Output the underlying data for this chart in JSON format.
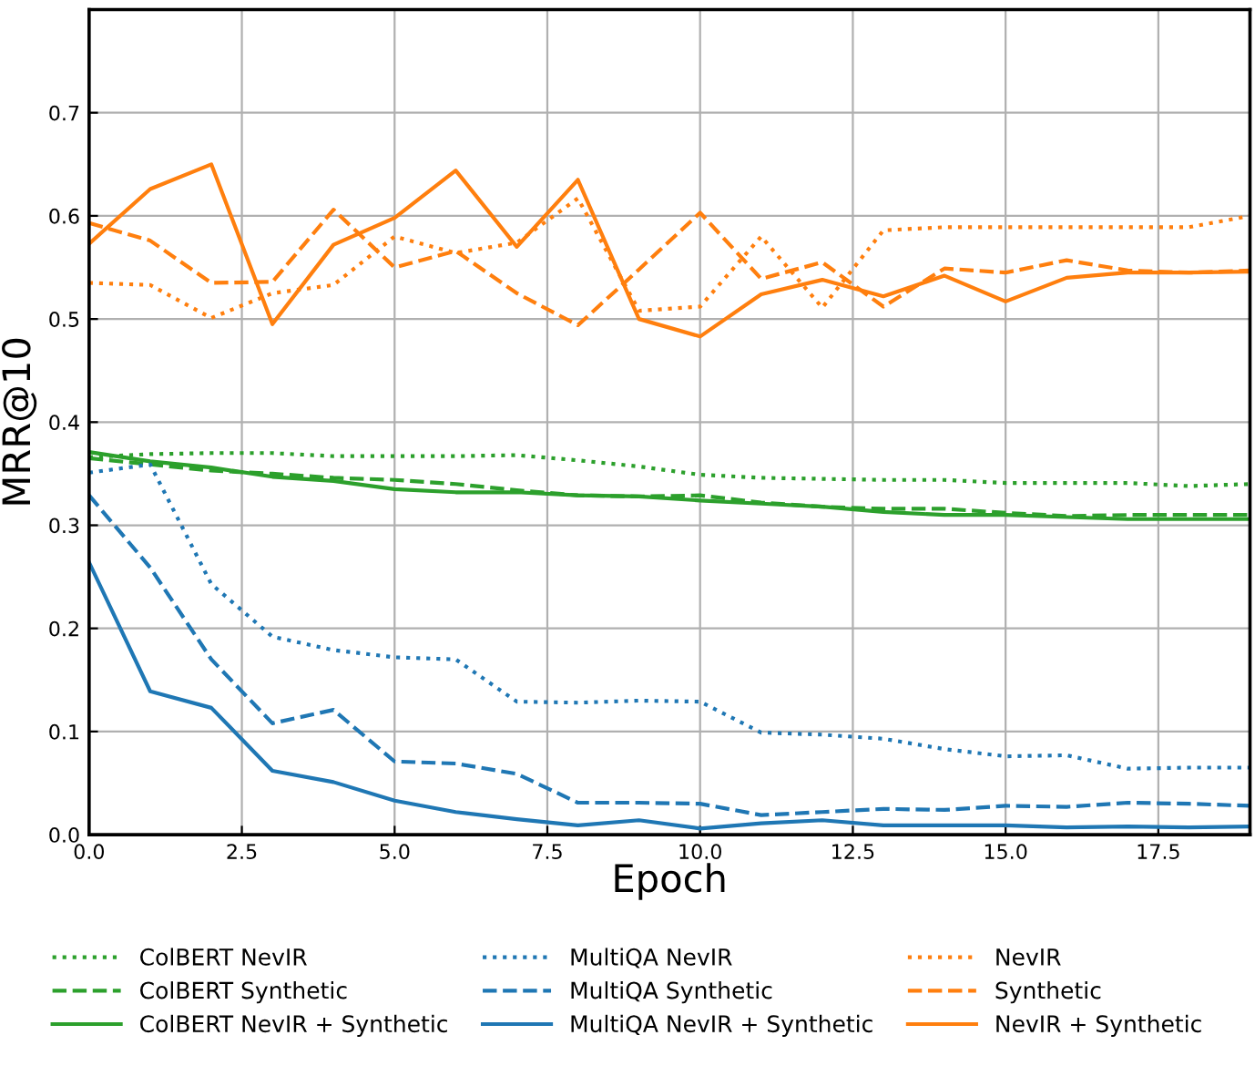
{
  "chart_data": {
    "type": "line",
    "xlabel": "Epoch",
    "ylabel": "MRR@10",
    "x": [
      0,
      1,
      2,
      3,
      4,
      5,
      6,
      7,
      8,
      9,
      10,
      11,
      12,
      13,
      14,
      15,
      16,
      17,
      18,
      19
    ],
    "xlim": [
      0,
      19
    ],
    "ylim": [
      0,
      0.8
    ],
    "xticks": [
      {
        "value": 0,
        "label": "0.0"
      },
      {
        "value": 2.5,
        "label": "2.5"
      },
      {
        "value": 5,
        "label": "5.0"
      },
      {
        "value": 7.5,
        "label": "7.5"
      },
      {
        "value": 10,
        "label": "10.0"
      },
      {
        "value": 12.5,
        "label": "12.5"
      },
      {
        "value": 15,
        "label": "15.0"
      },
      {
        "value": 17.5,
        "label": "17.5"
      }
    ],
    "yticks": [
      {
        "value": 0,
        "label": "0.0"
      },
      0.1,
      0.2,
      0.3,
      0.4,
      0.5,
      0.6,
      0.7
    ],
    "grid": true,
    "legend": "bottom",
    "series": [
      {
        "name": "ColBERT NevIR",
        "color": "#2ca02c",
        "line_style": "dotted",
        "values": [
          0.366,
          0.369,
          0.37,
          0.37,
          0.367,
          0.367,
          0.367,
          0.368,
          0.363,
          0.357,
          0.349,
          0.346,
          0.345,
          0.344,
          0.344,
          0.341,
          0.341,
          0.341,
          0.338,
          0.34
        ]
      },
      {
        "name": "ColBERT Synthetic",
        "color": "#2ca02c",
        "line_style": "dashed",
        "values": [
          0.365,
          0.359,
          0.353,
          0.35,
          0.346,
          0.344,
          0.34,
          0.334,
          0.329,
          0.328,
          0.329,
          0.322,
          0.318,
          0.316,
          0.316,
          0.312,
          0.309,
          0.31,
          0.31,
          0.31
        ]
      },
      {
        "name": "ColBERT NevIR + Synthetic",
        "color": "#2ca02c",
        "line_style": "solid",
        "values": [
          0.371,
          0.362,
          0.356,
          0.347,
          0.343,
          0.335,
          0.332,
          0.332,
          0.329,
          0.328,
          0.324,
          0.321,
          0.318,
          0.313,
          0.31,
          0.31,
          0.308,
          0.306,
          0.306,
          0.306
        ]
      },
      {
        "name": "MultiQA NevIR",
        "color": "#1f77b4",
        "line_style": "dotted",
        "values": [
          0.351,
          0.359,
          0.243,
          0.192,
          0.179,
          0.172,
          0.17,
          0.129,
          0.128,
          0.13,
          0.129,
          0.099,
          0.097,
          0.093,
          0.083,
          0.076,
          0.077,
          0.064,
          0.065,
          0.065
        ]
      },
      {
        "name": "MultiQA Synthetic",
        "color": "#1f77b4",
        "line_style": "dashed",
        "values": [
          0.329,
          0.259,
          0.17,
          0.108,
          0.121,
          0.071,
          0.069,
          0.059,
          0.031,
          0.031,
          0.03,
          0.019,
          0.022,
          0.025,
          0.024,
          0.028,
          0.027,
          0.031,
          0.03,
          0.028
        ]
      },
      {
        "name": "MultiQA NevIR + Synthetic",
        "color": "#1f77b4",
        "line_style": "solid",
        "values": [
          0.264,
          0.139,
          0.123,
          0.062,
          0.051,
          0.033,
          0.022,
          0.015,
          0.009,
          0.014,
          0.006,
          0.011,
          0.014,
          0.009,
          0.009,
          0.009,
          0.007,
          0.008,
          0.007,
          0.008
        ]
      },
      {
        "name": "NevIR",
        "color": "#ff7f0e",
        "line_style": "dotted",
        "values": [
          0.535,
          0.533,
          0.501,
          0.525,
          0.533,
          0.58,
          0.564,
          0.574,
          0.617,
          0.508,
          0.512,
          0.58,
          0.511,
          0.586,
          0.589,
          0.589,
          0.589,
          0.589,
          0.589,
          0.6
        ]
      },
      {
        "name": "Synthetic",
        "color": "#ff7f0e",
        "line_style": "dashed",
        "values": [
          0.593,
          0.576,
          0.535,
          0.536,
          0.606,
          0.55,
          0.566,
          0.525,
          0.494,
          0.548,
          0.603,
          0.539,
          0.555,
          0.512,
          0.549,
          0.545,
          0.557,
          0.547,
          0.545,
          0.547
        ]
      },
      {
        "name": "NevIR + Synthetic",
        "color": "#ff7f0e",
        "line_style": "solid",
        "values": [
          0.573,
          0.626,
          0.65,
          0.495,
          0.572,
          0.598,
          0.644,
          0.57,
          0.635,
          0.5,
          0.483,
          0.524,
          0.538,
          0.522,
          0.542,
          0.517,
          0.54,
          0.545,
          0.545,
          0.546
        ]
      }
    ]
  }
}
